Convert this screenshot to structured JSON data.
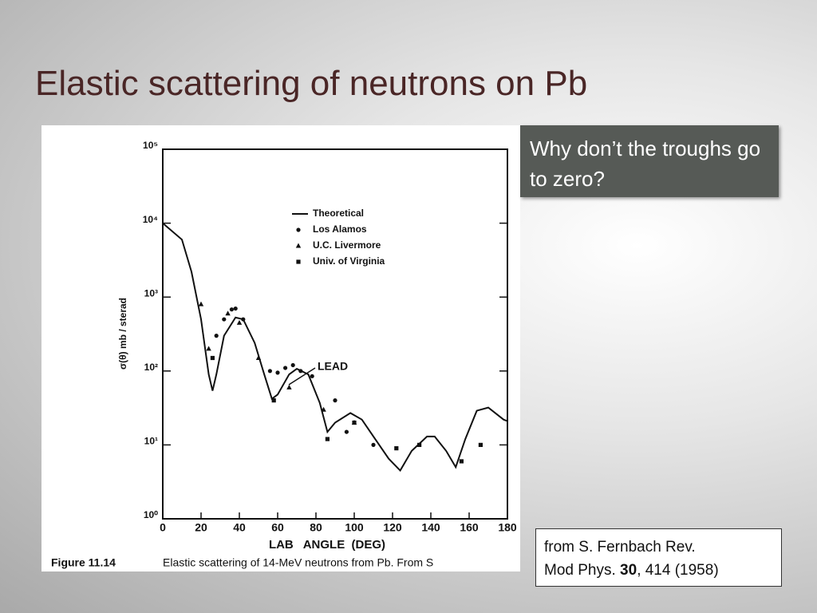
{
  "title": "Elastic scattering of neutrons on Pb",
  "callout": "Why don’t the troughs go to zero?",
  "citation": {
    "line1": "from S. Fernbach Rev.",
    "line2_start": "Mod Phys.",
    "volume": "30",
    "line2_end": ", 414 (1958)"
  },
  "chart_data": {
    "type": "scatter",
    "log_y": true,
    "ylabel": "σ(θ) mb / sterad",
    "xlabel": "LAB   ANGLE  (DEG)",
    "caption_number": "Figure 11.14",
    "caption": "Elastic scattering of 14-MeV neutrons from Pb. From S",
    "annotation": "LEAD",
    "xlim": [
      0,
      180
    ],
    "xticks": [
      0,
      20,
      40,
      60,
      80,
      100,
      120,
      140,
      160,
      180
    ],
    "ylim": [
      1,
      100000
    ],
    "yticks": [
      {
        "value": 1,
        "label": "10⁰"
      },
      {
        "value": 10,
        "label": "10¹"
      },
      {
        "value": 100,
        "label": "10²"
      },
      {
        "value": 1000,
        "label": "10³"
      },
      {
        "value": 10000,
        "label": "10⁴"
      },
      {
        "value": 100000,
        "label": "10⁵"
      }
    ],
    "series": [
      {
        "name": "Theoretical",
        "style": "line",
        "color": "#111111",
        "x": [
          0,
          10,
          15,
          20,
          24,
          26,
          28,
          32,
          38,
          42,
          48,
          53,
          57,
          60,
          66,
          70,
          76,
          82,
          86,
          90,
          98,
          104,
          110,
          118,
          124,
          130,
          138,
          142,
          148,
          153,
          158,
          164,
          170,
          178,
          180
        ],
        "values": [
          10000,
          6000,
          2200,
          500,
          90,
          54,
          90,
          300,
          530,
          500,
          240,
          90,
          42,
          48,
          90,
          107,
          90,
          37,
          15,
          20,
          27,
          22,
          13,
          6.5,
          4.5,
          8.3,
          13,
          13,
          8.3,
          5,
          12,
          29,
          32,
          22,
          21
        ]
      },
      {
        "name": "Los Alamos",
        "style": "circle",
        "color": "#111111",
        "x": [
          28,
          32,
          36,
          38,
          42,
          56,
          60,
          64,
          68,
          72,
          78,
          90,
          96,
          110
        ],
        "values": [
          300,
          500,
          680,
          700,
          500,
          100,
          95,
          110,
          120,
          100,
          85,
          40,
          15,
          10
        ]
      },
      {
        "name": "U.C. Livermore",
        "style": "triangle",
        "color": "#111111",
        "x": [
          20,
          24,
          34,
          40,
          50,
          66,
          84,
          100
        ],
        "values": [
          800,
          200,
          600,
          450,
          150,
          60,
          30,
          20
        ]
      },
      {
        "name": "Univ. of Virginia",
        "style": "square",
        "color": "#111111",
        "x": [
          26,
          58,
          86,
          100,
          122,
          134,
          156,
          166
        ],
        "values": [
          150,
          40,
          12,
          20,
          9,
          10,
          6,
          10
        ]
      }
    ]
  }
}
